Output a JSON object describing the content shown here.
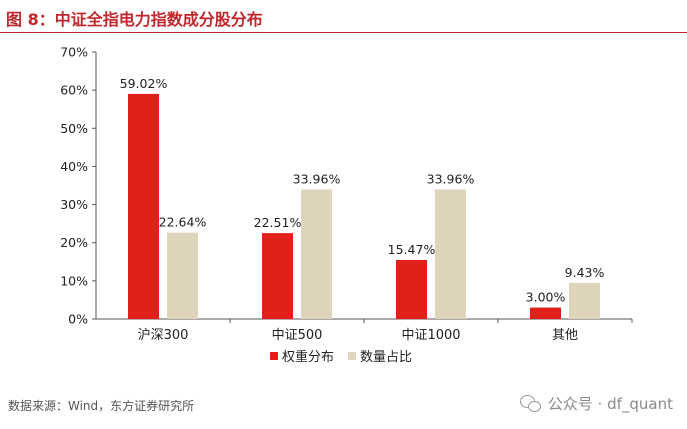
{
  "header": {
    "title": "图 8：中证全指电力指数成分股分布"
  },
  "chart_data": {
    "type": "bar",
    "categories": [
      "沪深300",
      "中证500",
      "中证1000",
      "其他"
    ],
    "series": [
      {
        "name": "权重分布",
        "values": [
          59.02,
          22.51,
          15.47,
          3.0
        ],
        "color": "#e0211a"
      },
      {
        "name": "数量占比",
        "values": [
          22.64,
          33.96,
          33.96,
          9.43
        ],
        "color": "#ded3bb"
      }
    ],
    "data_labels": [
      [
        "59.02%",
        "22.51%",
        "15.47%",
        "3.00%"
      ],
      [
        "22.64%",
        "33.96%",
        "33.96%",
        "9.43%"
      ]
    ],
    "ylim": [
      0,
      70
    ],
    "yticks": [
      0,
      10,
      20,
      30,
      40,
      50,
      60,
      70
    ],
    "ytick_labels": [
      "0%",
      "10%",
      "20%",
      "30%",
      "40%",
      "50%",
      "60%",
      "70%"
    ],
    "xlabel": "",
    "ylabel": "",
    "legend_position": "bottom-center",
    "grid": false
  },
  "footer": {
    "source": "数据来源：Wind，东方证券研究所",
    "watermark": "公众号 · df_quant",
    "watermark_icon": "wechat-icon"
  }
}
